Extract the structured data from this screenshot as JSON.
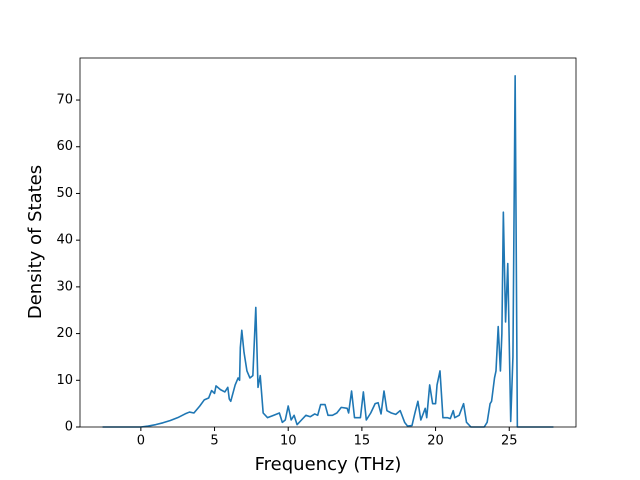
{
  "chart_data": {
    "type": "line",
    "x_label": "Frequency (THz)",
    "y_label": "Density of States",
    "color": "#1f77b4",
    "xlim": [
      -4.13,
      29.53
    ],
    "xticks": [
      0,
      5,
      10,
      15,
      20,
      25
    ],
    "ylim": [
      0,
      79
    ],
    "yticks": [
      0,
      10,
      20,
      30,
      40,
      50,
      60,
      70
    ],
    "x": [
      -2.6,
      0,
      0.5,
      1,
      1.5,
      2,
      2.5,
      3,
      3.3,
      3.6,
      4,
      4.3,
      4.6,
      4.8,
      5,
      5.1,
      5.4,
      5.7,
      5.9,
      6.0,
      6.1,
      6.4,
      6.6,
      6.7,
      6.75,
      6.85,
      7.0,
      7.2,
      7.4,
      7.6,
      7.8,
      7.95,
      8.1,
      8.3,
      8.6,
      9.0,
      9.4,
      9.6,
      9.8,
      10.0,
      10.2,
      10.4,
      10.6,
      10.9,
      11.2,
      11.5,
      11.8,
      12.0,
      12.2,
      12.5,
      12.7,
      13.0,
      13.3,
      13.6,
      14.0,
      14.1,
      14.3,
      14.5,
      14.9,
      15.1,
      15.3,
      15.6,
      15.9,
      16.1,
      16.3,
      16.5,
      16.7,
      17.0,
      17.3,
      17.6,
      17.9,
      18.1,
      18.4,
      18.6,
      18.8,
      19.0,
      19.3,
      19.4,
      19.6,
      19.8,
      20.0,
      20.1,
      20.3,
      20.5,
      20.8,
      21.0,
      21.2,
      21.3,
      21.6,
      21.9,
      22.1,
      22.4,
      23.3,
      23.5,
      23.7,
      23.8,
      24.0,
      24.1,
      24.25,
      24.4,
      24.5,
      24.6,
      24.75,
      24.9,
      25.1,
      25.25,
      25.4,
      25.55,
      28
    ],
    "values": [
      0,
      0,
      0.2,
      0.5,
      0.9,
      1.4,
      2.0,
      2.8,
      3.2,
      3.0,
      4.5,
      5.8,
      6.2,
      7.8,
      7.2,
      8.8,
      8.0,
      7.5,
      8.5,
      6.0,
      5.5,
      9.0,
      10.5,
      10.0,
      17,
      20.7,
      16,
      12,
      10.5,
      11,
      25.6,
      8.5,
      11,
      3,
      2,
      2.5,
      3,
      1,
      1.5,
      4.5,
      1.5,
      2.5,
      0.5,
      1.5,
      2.5,
      2.2,
      2.8,
      2.5,
      4.8,
      4.8,
      2.5,
      2.5,
      3.0,
      4.2,
      4.0,
      3.0,
      7.7,
      2.0,
      2.0,
      7.5,
      1.5,
      3.0,
      5.0,
      5.2,
      2.8,
      7.7,
      3.5,
      3.0,
      2.7,
      3.5,
      1.0,
      0.2,
      0.3,
      3,
      5.5,
      1.5,
      4,
      2,
      9,
      5,
      5,
      9,
      12,
      2,
      2,
      1.8,
      3.5,
      2,
      2.5,
      5,
      1,
      0,
      0,
      1,
      5,
      5.5,
      10.5,
      12,
      21.5,
      12,
      20,
      46,
      22.5,
      35,
      1.2,
      15,
      75.2,
      0,
      0
    ]
  }
}
